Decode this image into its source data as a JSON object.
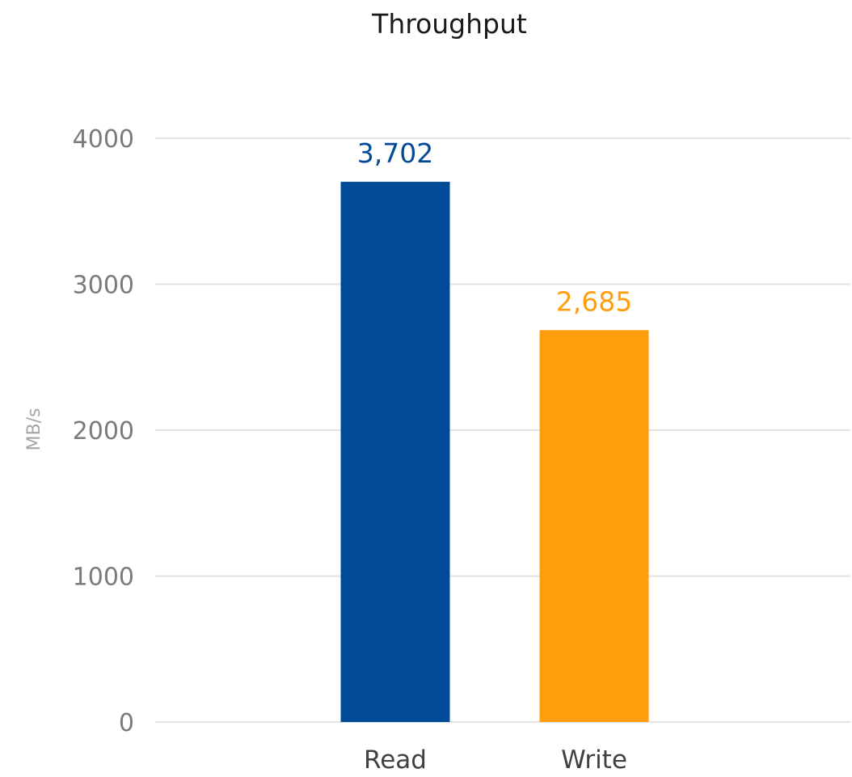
{
  "chart_data": {
    "type": "bar",
    "title": "Throughput",
    "ylabel": "MB/s",
    "xlabel": "",
    "categories": [
      "Read",
      "Write"
    ],
    "values": [
      3702,
      2685
    ],
    "data_labels": [
      "3,702",
      "2,685"
    ],
    "colors": [
      "#014a98",
      "#ff9e0d"
    ],
    "ylim": [
      0,
      4000
    ],
    "yticks": [
      0,
      1000,
      2000,
      3000,
      4000
    ],
    "ytick_labels": [
      "0",
      "1000",
      "2000",
      "3000",
      "4000"
    ],
    "grid": true,
    "legend": "none"
  }
}
